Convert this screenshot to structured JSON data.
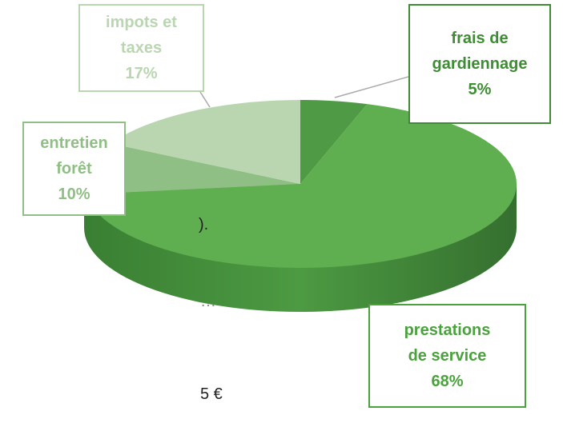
{
  "chart_data": {
    "type": "pie",
    "categories": [
      "frais de gardiennage",
      "prestations de service",
      "entretien forêt",
      "impots et taxes"
    ],
    "values": [
      5,
      68,
      10,
      17
    ],
    "value_labels": [
      "5%",
      "68%",
      "10%",
      "17%"
    ],
    "colors": [
      "#4f9a45",
      "#5fae4f",
      "#8fbf84",
      "#b9d6b0"
    ],
    "label_colors": [
      "#3e8c33",
      "#4aa23c",
      "#8fbf84",
      "#b9d6b0"
    ]
  },
  "side_text": [
    ").",
    "…",
    "5 €"
  ]
}
